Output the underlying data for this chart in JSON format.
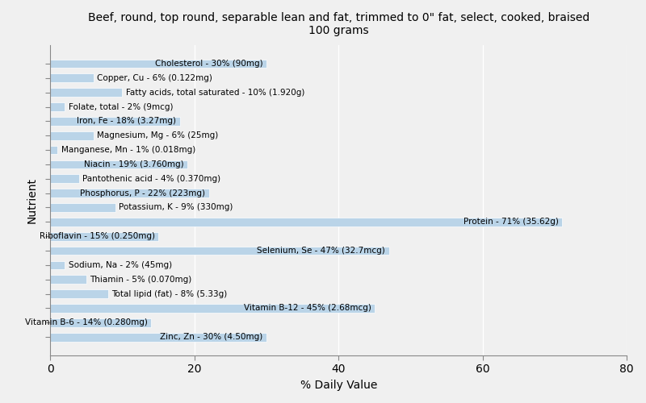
{
  "title": "Beef, round, top round, separable lean and fat, trimmed to 0\" fat, select, cooked, braised\n100 grams",
  "xlabel": "% Daily Value",
  "ylabel": "Nutrient",
  "xlim": [
    0,
    80
  ],
  "bar_color": "#bad4e8",
  "background_color": "#f0f0f0",
  "nutrients": [
    {
      "label": "Cholesterol - 30% (90mg)",
      "value": 30
    },
    {
      "label": "Copper, Cu - 6% (0.122mg)",
      "value": 6
    },
    {
      "label": "Fatty acids, total saturated - 10% (1.920g)",
      "value": 10
    },
    {
      "label": "Folate, total - 2% (9mcg)",
      "value": 2
    },
    {
      "label": "Iron, Fe - 18% (3.27mg)",
      "value": 18
    },
    {
      "label": "Magnesium, Mg - 6% (25mg)",
      "value": 6
    },
    {
      "label": "Manganese, Mn - 1% (0.018mg)",
      "value": 1
    },
    {
      "label": "Niacin - 19% (3.760mg)",
      "value": 19
    },
    {
      "label": "Pantothenic acid - 4% (0.370mg)",
      "value": 4
    },
    {
      "label": "Phosphorus, P - 22% (223mg)",
      "value": 22
    },
    {
      "label": "Potassium, K - 9% (330mg)",
      "value": 9
    },
    {
      "label": "Protein - 71% (35.62g)",
      "value": 71
    },
    {
      "label": "Riboflavin - 15% (0.250mg)",
      "value": 15
    },
    {
      "label": "Selenium, Se - 47% (32.7mcg)",
      "value": 47
    },
    {
      "label": "Sodium, Na - 2% (45mg)",
      "value": 2
    },
    {
      "label": "Thiamin - 5% (0.070mg)",
      "value": 5
    },
    {
      "label": "Total lipid (fat) - 8% (5.33g)",
      "value": 8
    },
    {
      "label": "Vitamin B-12 - 45% (2.68mcg)",
      "value": 45
    },
    {
      "label": "Vitamin B-6 - 14% (0.280mg)",
      "value": 14
    },
    {
      "label": "Zinc, Zn - 30% (4.50mg)",
      "value": 30
    }
  ],
  "text_threshold": 12
}
